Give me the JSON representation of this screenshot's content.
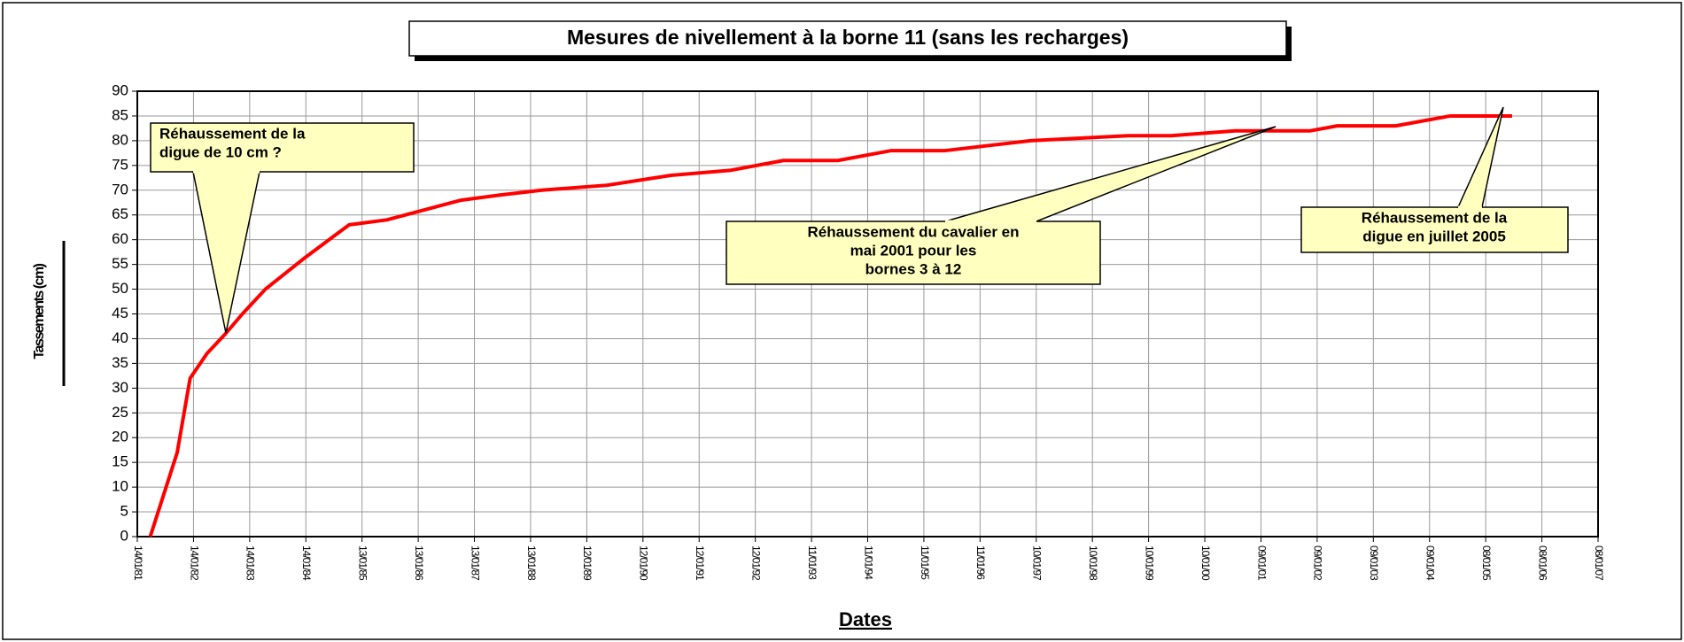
{
  "chart_data": {
    "type": "line",
    "title": "Mesures de nivellement à la borne 11 (sans les recharges)",
    "x_label": "Dates",
    "y_label": "Tassements (cm)",
    "x": [
      1981.23,
      1981.71,
      1981.94,
      1982.24,
      1982.57,
      1982.87,
      1983.28,
      1984.0,
      1984.77,
      1985.44,
      1986.1,
      1986.77,
      1987.44,
      1988.2,
      1989.36,
      1990.5,
      1991.55,
      1992.5,
      1993.47,
      1994.42,
      1995.38,
      1996.9,
      1998.63,
      1999.4,
      2000.54,
      2001.88,
      2002.36,
      2003.4,
      2004.37,
      2005.47
    ],
    "series": [
      {
        "name": "Tassements",
        "color": "#ff0000",
        "values": [
          0,
          17,
          32,
          37,
          41,
          45,
          50,
          56.5,
          63,
          64,
          66,
          68,
          69,
          70,
          71,
          73,
          74,
          76,
          76,
          78,
          78,
          80,
          81,
          81,
          82,
          82,
          83,
          83,
          85,
          85
        ]
      }
    ],
    "xlim": [
      1981,
      2007
    ],
    "xticks": [
      {
        "value": 1981,
        "label": "14/01/81"
      },
      {
        "value": 1982,
        "label": "14/01/82"
      },
      {
        "value": 1983,
        "label": "14/01/83"
      },
      {
        "value": 1984,
        "label": "14/01/84"
      },
      {
        "value": 1985,
        "label": "13/01/85"
      },
      {
        "value": 1986,
        "label": "13/01/86"
      },
      {
        "value": 1987,
        "label": "13/01/87"
      },
      {
        "value": 1988,
        "label": "13/01/88"
      },
      {
        "value": 1989,
        "label": "12/01/89"
      },
      {
        "value": 1990,
        "label": "12/01/90"
      },
      {
        "value": 1991,
        "label": "12/01/91"
      },
      {
        "value": 1992,
        "label": "12/01/92"
      },
      {
        "value": 1993,
        "label": "11/01/93"
      },
      {
        "value": 1994,
        "label": "11/01/94"
      },
      {
        "value": 1995,
        "label": "11/01/95"
      },
      {
        "value": 1996,
        "label": "11/01/96"
      },
      {
        "value": 1997,
        "label": "10/01/97"
      },
      {
        "value": 1998,
        "label": "10/01/98"
      },
      {
        "value": 1999,
        "label": "10/01/99"
      },
      {
        "value": 2000,
        "label": "10/01/00"
      },
      {
        "value": 2001,
        "label": "09/01/01"
      },
      {
        "value": 2002,
        "label": "09/01/02"
      },
      {
        "value": 2003,
        "label": "09/01/03"
      },
      {
        "value": 2004,
        "label": "09/01/04"
      },
      {
        "value": 2005,
        "label": "08/01/05"
      },
      {
        "value": 2006,
        "label": "08/01/06"
      },
      {
        "value": 2007,
        "label": "08/01/07"
      }
    ],
    "ylim": [
      0,
      90
    ],
    "yticks": [
      0,
      5,
      10,
      15,
      20,
      25,
      30,
      35,
      40,
      45,
      50,
      55,
      60,
      65,
      70,
      75,
      80,
      85,
      90
    ],
    "grid": true,
    "annotations": [
      {
        "lines": [
          "Réhaussement de la",
          "digue de 10 cm ?"
        ]
      },
      {
        "lines": [
          "Réhaussement du cavalier en",
          "mai 2001 pour les",
          "bornes 3 à 12"
        ]
      },
      {
        "lines": [
          "Réhaussement de la",
          "digue en juillet 2005"
        ]
      }
    ]
  }
}
